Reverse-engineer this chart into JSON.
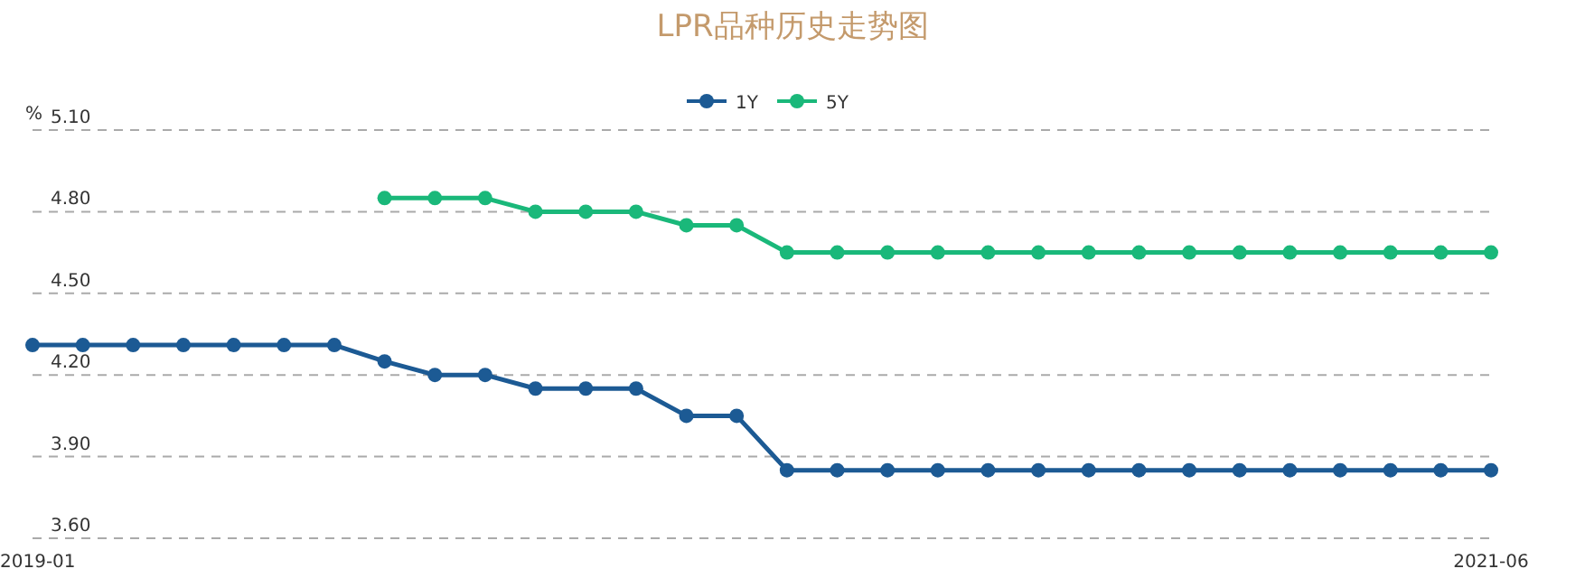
{
  "chart_data": {
    "type": "line",
    "title": "LPR品种历史走势图",
    "ylabel": "%",
    "x": [
      "2019-01",
      "2019-02",
      "2019-03",
      "2019-04",
      "2019-05",
      "2019-06",
      "2019-07",
      "2019-08",
      "2019-09",
      "2019-10",
      "2019-11",
      "2019-12",
      "2020-01",
      "2020-02",
      "2020-03",
      "2020-04",
      "2020-05",
      "2020-06",
      "2020-07",
      "2020-08",
      "2020-09",
      "2020-10",
      "2020-11",
      "2020-12",
      "2021-01",
      "2021-02",
      "2021-03",
      "2021-04",
      "2021-05",
      "2021-06"
    ],
    "xlim": [
      "2019-01",
      "2021-06"
    ],
    "xticks": [
      "2019-01",
      "2021-06"
    ],
    "series": [
      {
        "name": "1Y",
        "color": "#1c5a94",
        "values": [
          4.31,
          4.31,
          4.31,
          4.31,
          4.31,
          4.31,
          4.31,
          4.25,
          4.2,
          4.2,
          4.15,
          4.15,
          4.15,
          4.05,
          4.05,
          3.85,
          3.85,
          3.85,
          3.85,
          3.85,
          3.85,
          3.85,
          3.85,
          3.85,
          3.85,
          3.85,
          3.85,
          3.85,
          3.85,
          3.85
        ]
      },
      {
        "name": "5Y",
        "color": "#1ab87a",
        "values": [
          null,
          null,
          null,
          null,
          null,
          null,
          null,
          4.85,
          4.85,
          4.85,
          4.8,
          4.8,
          4.8,
          4.75,
          4.75,
          4.65,
          4.65,
          4.65,
          4.65,
          4.65,
          4.65,
          4.65,
          4.65,
          4.65,
          4.65,
          4.65,
          4.65,
          4.65,
          4.65,
          4.65
        ]
      }
    ],
    "ylim": [
      3.6,
      5.1
    ],
    "yticks": [
      {
        "value": 3.6,
        "label": "3.60"
      },
      {
        "value": 3.9,
        "label": "3.90"
      },
      {
        "value": 4.2,
        "label": "4.20"
      },
      {
        "value": 4.5,
        "label": "4.50"
      },
      {
        "value": 4.8,
        "label": "4.80"
      },
      {
        "value": 5.1,
        "label": "5.10"
      }
    ],
    "grid": "y",
    "legend": "top",
    "marker": "circle",
    "line_style": "solid"
  }
}
